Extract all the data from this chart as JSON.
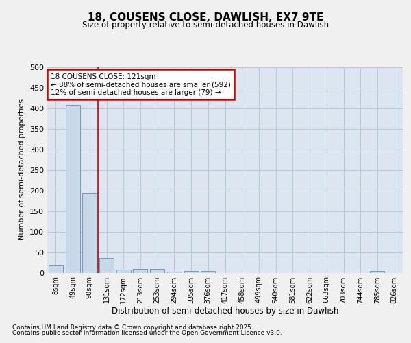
{
  "title": "18, COUSENS CLOSE, DAWLISH, EX7 9TE",
  "subtitle": "Size of property relative to semi-detached houses in Dawlish",
  "xlabel": "Distribution of semi-detached houses by size in Dawlish",
  "ylabel": "Number of semi-detached properties",
  "categories": [
    "8sqm",
    "49sqm",
    "90sqm",
    "131sqm",
    "172sqm",
    "213sqm",
    "253sqm",
    "294sqm",
    "335sqm",
    "376sqm",
    "417sqm",
    "458sqm",
    "499sqm",
    "540sqm",
    "581sqm",
    "622sqm",
    "663sqm",
    "703sqm",
    "744sqm",
    "785sqm",
    "826sqm"
  ],
  "values": [
    17,
    408,
    193,
    36,
    7,
    9,
    10,
    3,
    5,
    5,
    0,
    0,
    0,
    0,
    0,
    0,
    0,
    0,
    0,
    4,
    0
  ],
  "bar_color": "#c8d8e8",
  "bar_edge_color": "#6090b8",
  "grid_color": "#b8c8d8",
  "background_color": "#dde5f0",
  "fig_background": "#f0f0f0",
  "red_line_index": 3,
  "annotation_title": "18 COUSENS CLOSE: 121sqm",
  "annotation_line1": "← 88% of semi-detached houses are smaller (592)",
  "annotation_line2": "12% of semi-detached houses are larger (79) →",
  "annotation_box_color": "#ffffff",
  "annotation_box_edge": "#cc0000",
  "red_line_color": "#cc0000",
  "ylim": [
    0,
    500
  ],
  "yticks": [
    0,
    50,
    100,
    150,
    200,
    250,
    300,
    350,
    400,
    450,
    500
  ],
  "footnote1": "Contains HM Land Registry data © Crown copyright and database right 2025.",
  "footnote2": "Contains public sector information licensed under the Open Government Licence v3.0."
}
